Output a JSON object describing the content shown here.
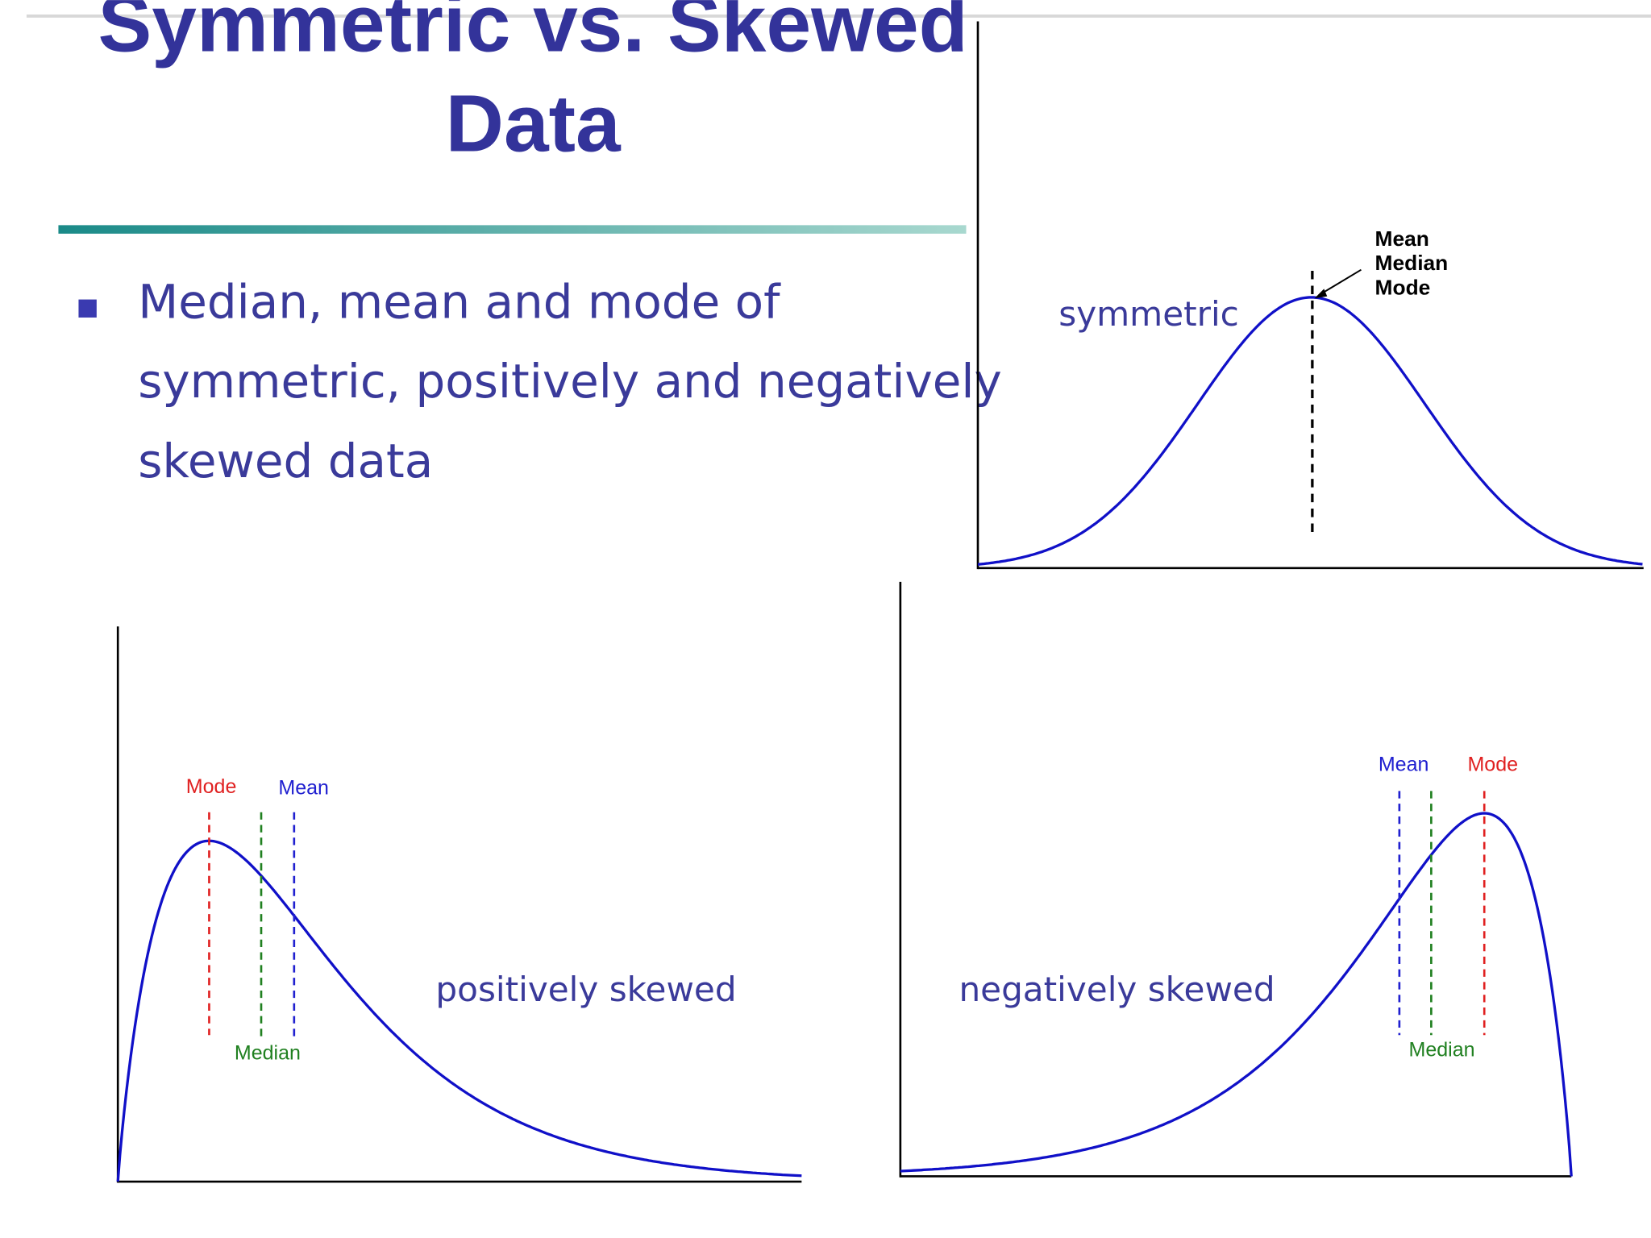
{
  "title": {
    "line1": "Symmetric vs. Skewed",
    "line2": "Data"
  },
  "bullet": {
    "lines": [
      "Median, mean and mode of",
      "symmetric, positively and negatively",
      "skewed data"
    ]
  },
  "symmetric": {
    "label": "symmetric",
    "annotations": [
      "Mean",
      "Median",
      "Mode"
    ]
  },
  "positive": {
    "label": "positively skewed",
    "mode": "Mode",
    "mean": "Mean",
    "median": "Median"
  },
  "negative": {
    "label": "negatively skewed",
    "mode": "Mode",
    "mean": "Mean",
    "median": "Median"
  }
}
